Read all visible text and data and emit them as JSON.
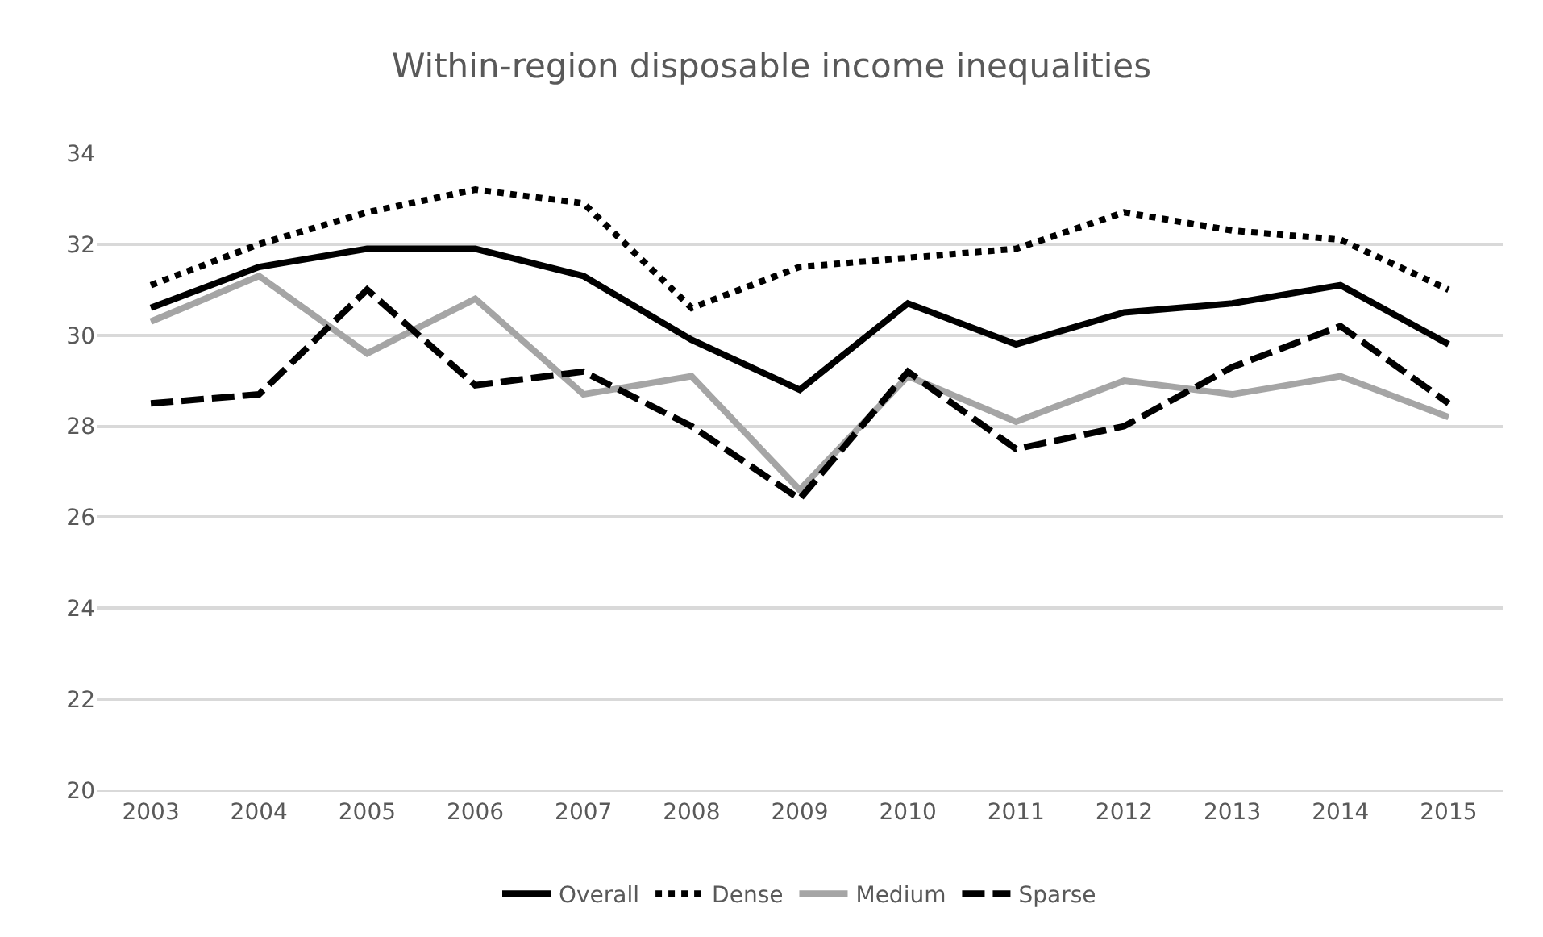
{
  "chart_data": {
    "type": "line",
    "title": "Within-region disposable income inequalities",
    "categories": [
      "2003",
      "2004",
      "2005",
      "2006",
      "2007",
      "2008",
      "2009",
      "2010",
      "2011",
      "2012",
      "2013",
      "2014",
      "2015"
    ],
    "series": [
      {
        "name": "Overall",
        "color": "#000000",
        "line_style": "solid",
        "values": [
          30.6,
          31.5,
          31.9,
          31.9,
          31.3,
          29.9,
          28.8,
          30.7,
          29.8,
          30.5,
          30.7,
          31.1,
          29.8
        ]
      },
      {
        "name": "Dense",
        "color": "#000000",
        "line_style": "dotted",
        "values": [
          31.1,
          32.0,
          32.7,
          33.2,
          32.9,
          30.6,
          31.5,
          31.7,
          31.9,
          32.7,
          32.3,
          32.1,
          31.0
        ]
      },
      {
        "name": "Medium",
        "color": "#a5a5a5",
        "line_style": "solid",
        "values": [
          30.3,
          31.3,
          29.6,
          30.8,
          28.7,
          29.1,
          26.6,
          29.1,
          28.1,
          29.0,
          28.7,
          29.1,
          28.2
        ]
      },
      {
        "name": "Sparse",
        "color": "#000000",
        "line_style": "dashed",
        "values": [
          28.5,
          28.7,
          31.0,
          28.9,
          29.2,
          28.0,
          26.4,
          29.2,
          27.5,
          28.0,
          29.3,
          30.2,
          28.5
        ]
      }
    ],
    "ylim": [
      20,
      34
    ],
    "yticks": [
      20,
      22,
      24,
      26,
      28,
      30,
      32,
      34
    ],
    "grid": "y",
    "legend": "bottom",
    "marker": "none"
  }
}
